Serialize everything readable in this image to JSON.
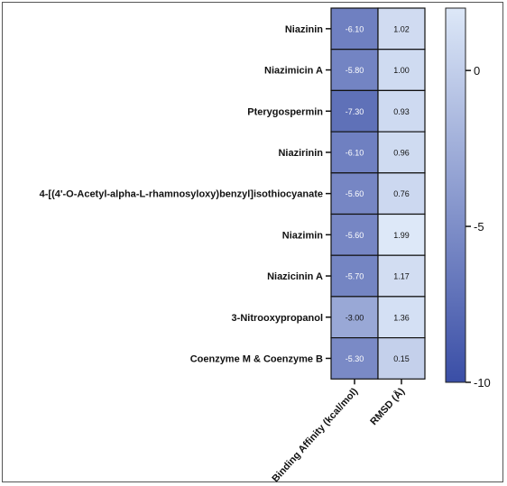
{
  "chart_data": {
    "type": "heatmap",
    "rows": [
      "Niazinin",
      "Niazimicin A",
      "Pterygospermin",
      "Niazirinin",
      "4-[(4'-O-Acetyl-alpha-L-rhamnosyloxy)benzyl]isothiocyanate",
      "Niazimin",
      "Niazicinin A",
      "3-Nitrooxypropanol",
      "Coenzyme M & Coenzyme B"
    ],
    "columns": [
      "Binding Affinity (kcal/mol)",
      "RMSD (Å)"
    ],
    "values": [
      [
        -6.1,
        1.02
      ],
      [
        -5.8,
        1.0
      ],
      [
        -7.3,
        0.93
      ],
      [
        -6.1,
        0.96
      ],
      [
        -5.6,
        0.76
      ],
      [
        -5.6,
        1.99
      ],
      [
        -5.7,
        1.17
      ],
      [
        -3.0,
        1.36
      ],
      [
        -5.3,
        0.15
      ]
    ],
    "value_labels": [
      [
        "-6.10",
        "1.02"
      ],
      [
        "-5.80",
        "1.00"
      ],
      [
        "-7.30",
        "0.93"
      ],
      [
        "-6.10",
        "0.96"
      ],
      [
        "-5.60",
        "0.76"
      ],
      [
        "-5.60",
        "1.99"
      ],
      [
        "-5.70",
        "1.17"
      ],
      [
        "-3.00",
        "1.36"
      ],
      [
        "-5.30",
        "0.15"
      ]
    ],
    "colorbar": {
      "range": [
        -10,
        2
      ],
      "ticks": [
        0,
        -5,
        -10
      ],
      "tick_labels": [
        "0",
        "-5",
        "-10"
      ],
      "low_color": "#3a4ea6",
      "high_color": "#dde8f8"
    }
  }
}
